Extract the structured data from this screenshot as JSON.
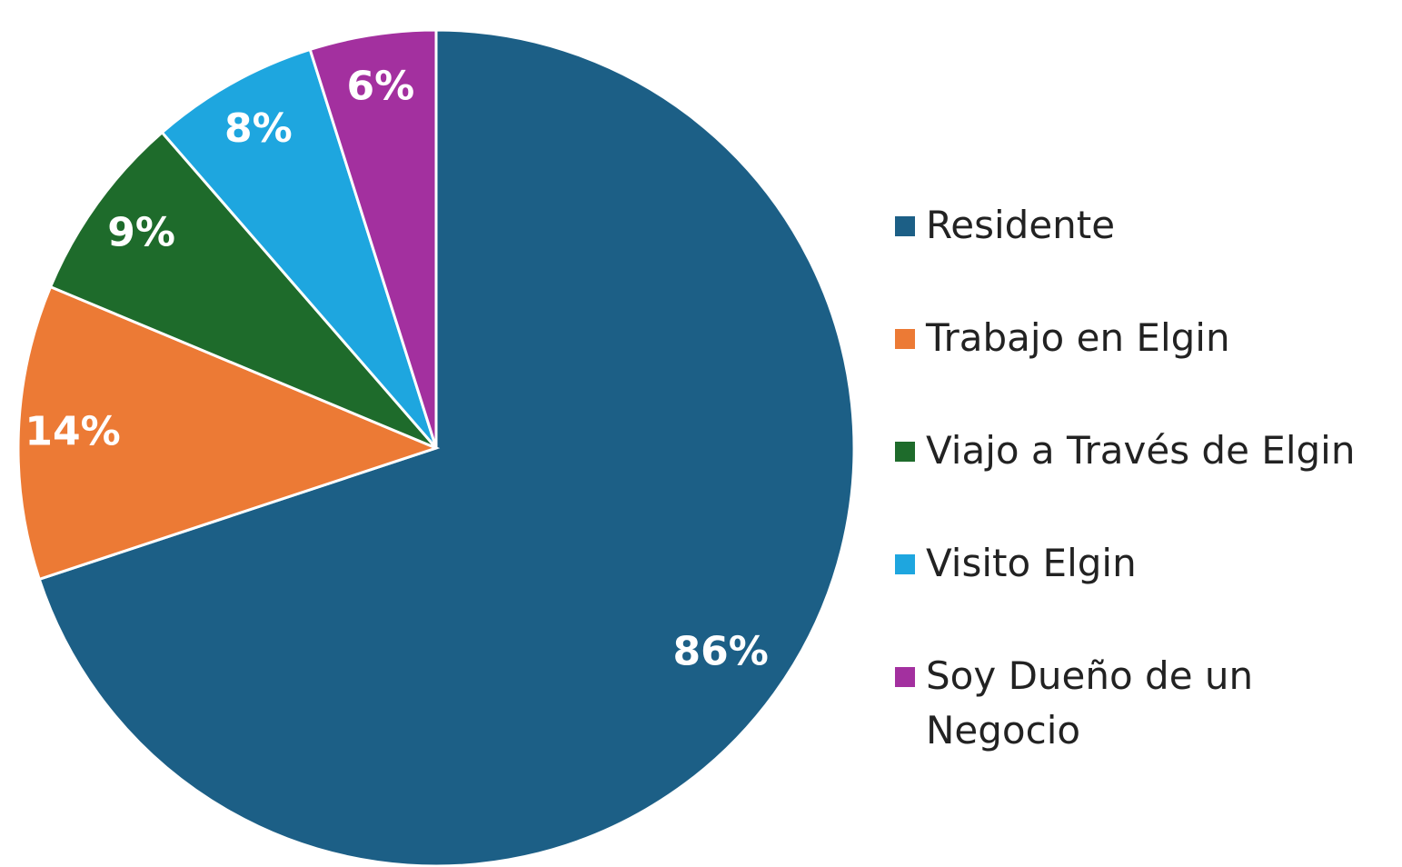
{
  "chart_data": {
    "type": "pie",
    "categories": [
      "Residente",
      "Trabajo en Elgin",
      "Viajo a Través de Elgin",
      "Visito Elgin",
      "Soy Dueño de un Negocio"
    ],
    "values": [
      86,
      14,
      9,
      8,
      6
    ],
    "value_labels": [
      "86%",
      "14%",
      "9%",
      "8%",
      "6%"
    ],
    "colors": [
      "#1c5f86",
      "#ec7a35",
      "#1e6b2b",
      "#1ea6df",
      "#a3309f"
    ],
    "legend": "right"
  }
}
